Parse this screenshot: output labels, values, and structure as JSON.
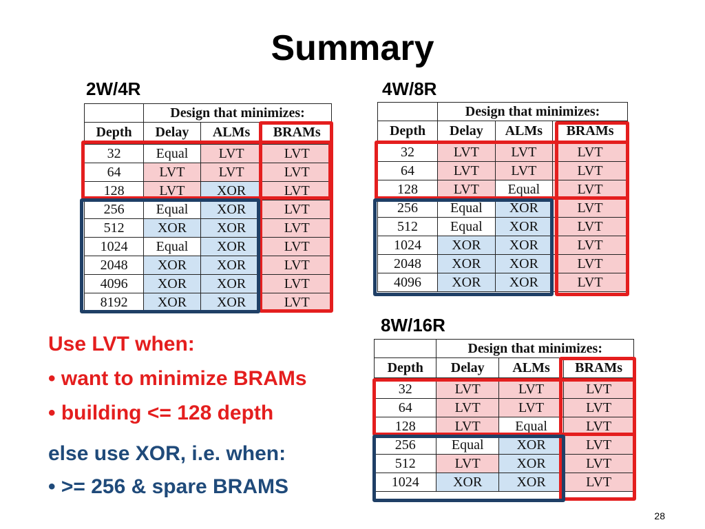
{
  "slide": {
    "title": "Summary",
    "page_number": "28"
  },
  "tables": [
    {
      "label": "2W/4R",
      "group_header": "Design that minimizes:",
      "columns": [
        "Depth",
        "Delay",
        "ALMs",
        "BRAMs"
      ],
      "rows": [
        [
          "32",
          "Equal",
          "LVT",
          "LVT"
        ],
        [
          "64",
          "LVT",
          "LVT",
          "LVT"
        ],
        [
          "128",
          "LVT",
          "XOR",
          "LVT"
        ],
        [
          "256",
          "Equal",
          "XOR",
          "LVT"
        ],
        [
          "512",
          "XOR",
          "XOR",
          "LVT"
        ],
        [
          "1024",
          "Equal",
          "XOR",
          "LVT"
        ],
        [
          "2048",
          "XOR",
          "XOR",
          "LVT"
        ],
        [
          "4096",
          "XOR",
          "XOR",
          "LVT"
        ],
        [
          "8192",
          "XOR",
          "XOR",
          "LVT"
        ]
      ]
    },
    {
      "label": "4W/8R",
      "group_header": "Design that minimizes:",
      "columns": [
        "Depth",
        "Delay",
        "ALMs",
        "BRAMs"
      ],
      "rows": [
        [
          "32",
          "LVT",
          "LVT",
          "LVT"
        ],
        [
          "64",
          "LVT",
          "LVT",
          "LVT"
        ],
        [
          "128",
          "LVT",
          "Equal",
          "LVT"
        ],
        [
          "256",
          "Equal",
          "XOR",
          "LVT"
        ],
        [
          "512",
          "Equal",
          "XOR",
          "LVT"
        ],
        [
          "1024",
          "XOR",
          "XOR",
          "LVT"
        ],
        [
          "2048",
          "XOR",
          "XOR",
          "LVT"
        ],
        [
          "4096",
          "XOR",
          "XOR",
          "LVT"
        ]
      ]
    },
    {
      "label": "8W/16R",
      "group_header": "Design that minimizes:",
      "columns": [
        "Depth",
        "Delay",
        "ALMs",
        "BRAMs"
      ],
      "rows": [
        [
          "32",
          "LVT",
          "LVT",
          "LVT"
        ],
        [
          "64",
          "LVT",
          "LVT",
          "LVT"
        ],
        [
          "128",
          "LVT",
          "Equal",
          "LVT"
        ],
        [
          "256",
          "Equal",
          "XOR",
          "LVT"
        ],
        [
          "512",
          "LVT",
          "XOR",
          "LVT"
        ],
        [
          "1024",
          "XOR",
          "XOR",
          "LVT"
        ]
      ]
    }
  ],
  "colors": {
    "lvt_cell": "#f8cdcf",
    "xor_cell": "#cfe2f3",
    "red_accent": "#e41e1e",
    "blue_accent": "#1f3f66"
  },
  "notes": {
    "lvt_heading": "Use LVT when:",
    "lvt_bullets": [
      "want to minimize BRAMs",
      "building <= 128 depth"
    ],
    "xor_heading": "else use XOR, i.e. when:",
    "xor_bullets": [
      ">= 256 & spare BRAMS"
    ],
    "bullet_glyph": "•"
  }
}
